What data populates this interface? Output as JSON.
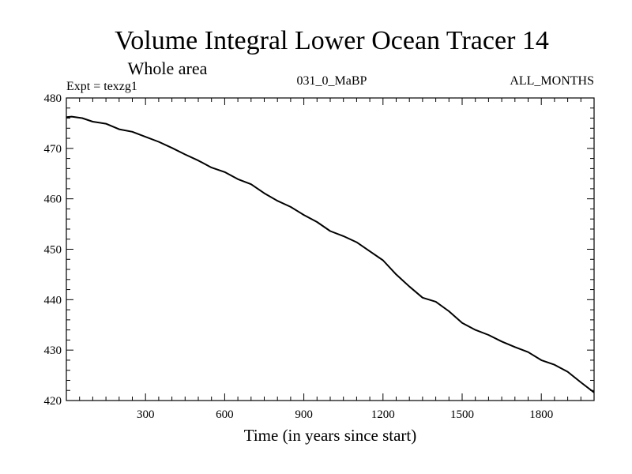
{
  "chart_data": {
    "type": "line",
    "title": "Volume Integral Lower Ocean Tracer 14",
    "subtitle": "Whole area",
    "experiment": "Expt = texzg1",
    "run_label": "031_0_MaBP",
    "months_label": "ALL_MONTHS",
    "xlabel": "Time (in years since start)",
    "ylabel": "",
    "xlim": [
      0,
      2000
    ],
    "ylim": [
      420,
      480
    ],
    "x_ticks": [
      300,
      600,
      900,
      1200,
      1500,
      1800
    ],
    "y_ticks": [
      420,
      430,
      440,
      450,
      460,
      470,
      480
    ],
    "series": [
      {
        "name": "Volume Integral Lower Ocean Tracer 14",
        "x": [
          0,
          20,
          60,
          100,
          150,
          200,
          250,
          300,
          350,
          400,
          450,
          500,
          550,
          600,
          650,
          700,
          750,
          800,
          850,
          900,
          950,
          1000,
          1050,
          1100,
          1150,
          1200,
          1250,
          1300,
          1350,
          1400,
          1450,
          1500,
          1550,
          1600,
          1650,
          1700,
          1750,
          1800,
          1850,
          1900,
          1950,
          2000
        ],
        "values": [
          476.2,
          476.3,
          476.0,
          475.3,
          474.9,
          473.8,
          473.3,
          472.3,
          471.3,
          470.1,
          468.8,
          467.6,
          466.2,
          465.3,
          463.9,
          462.9,
          461.1,
          459.6,
          458.4,
          456.8,
          455.4,
          453.6,
          452.6,
          451.4,
          449.6,
          447.8,
          445.0,
          442.6,
          440.4,
          439.6,
          437.7,
          435.4,
          434.0,
          433.0,
          431.7,
          430.6,
          429.6,
          428.0,
          427.1,
          425.7,
          423.6,
          421.6
        ]
      }
    ],
    "colors": {
      "line": "#000000",
      "axes": "#000000",
      "background": "#ffffff"
    }
  }
}
